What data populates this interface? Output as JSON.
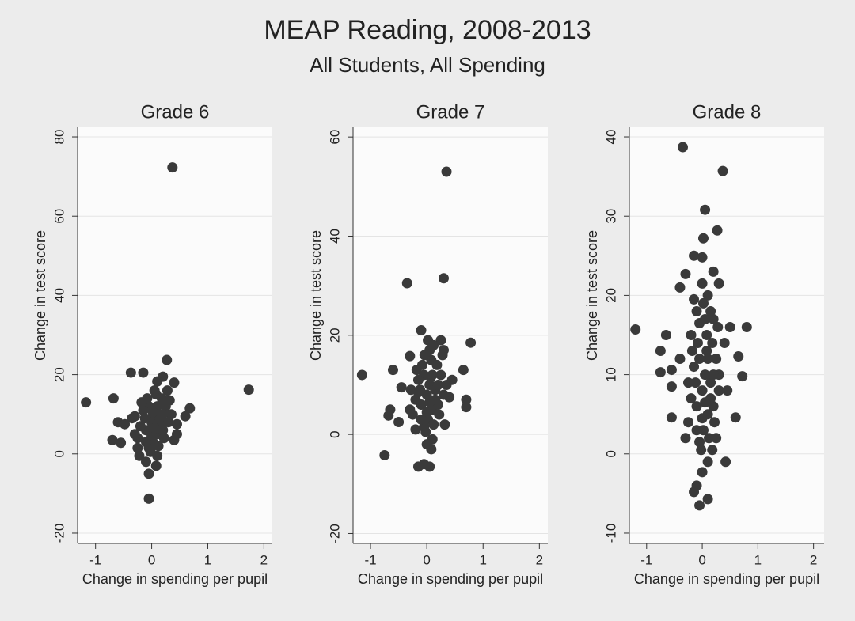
{
  "title": "MEAP Reading, 2008-2013",
  "subtitle": "All Students, All Spending",
  "chart_data": [
    {
      "type": "scatter",
      "title": "Grade 6",
      "x_label": "Change in spending per pupil",
      "y_label": "Change in test score",
      "color": "#3a3a3a",
      "grid": true,
      "xlim": [
        -1.32,
        2.15
      ],
      "ylim": [
        -22.6,
        82.6
      ],
      "xticks": [
        -1,
        0,
        1,
        2
      ],
      "yticks": [
        -20,
        0,
        20,
        40,
        60,
        80
      ],
      "x": [
        0.37,
        1.73,
        -1.17,
        -0.05,
        0.27,
        -0.37,
        -0.15,
        -0.68,
        -0.7,
        -0.55,
        -0.6,
        -0.48,
        -0.3,
        0.6,
        0.68,
        0.4,
        0.2,
        0.1,
        -0.05,
        -0.25,
        0.08,
        -0.1,
        0.4,
        0.45,
        0,
        0.05,
        -0.1,
        0.1,
        -0.05,
        0.15,
        -0.2,
        0.2,
        0.02,
        -0.08,
        0.08,
        0.25,
        -0.15,
        0.3,
        0.12,
        -0.02,
        0.18,
        -0.25,
        0.05,
        -0.12,
        0.22,
        0.35,
        -0.3,
        0.1,
        0,
        -0.05,
        0.28,
        0.15,
        -0.18,
        0.05,
        -0.35,
        0.32,
        0.02,
        -0.1,
        0.2,
        0.1,
        0.45,
        -0.22
      ],
      "y": [
        72.3,
        16.2,
        13,
        -11.3,
        23.7,
        20.5,
        20.5,
        14,
        3.5,
        2.8,
        8,
        7.5,
        9.5,
        9.5,
        11.5,
        18,
        19.5,
        18.3,
        -5,
        1.5,
        -3,
        -2,
        3.5,
        7.5,
        8,
        10,
        6,
        5,
        12,
        9,
        7,
        6,
        3,
        14,
        15,
        12,
        11,
        8,
        2,
        0.5,
        14,
        4,
        16,
        9,
        4,
        10,
        5,
        12,
        4.5,
        1.5,
        16,
        7,
        13,
        6.5,
        9,
        13.5,
        10.5,
        3,
        10,
        -0.5,
        5,
        -0.5
      ]
    },
    {
      "type": "scatter",
      "title": "Grade 7",
      "x_label": "Change in spending per pupil",
      "y_label": "Change in test score",
      "color": "#3a3a3a",
      "grid": true,
      "xlim": [
        -1.31,
        2.15
      ],
      "ylim": [
        -22.0,
        62.1
      ],
      "xticks": [
        -1,
        0,
        1,
        2
      ],
      "yticks": [
        -20,
        0,
        20,
        40,
        60
      ],
      "x": [
        0.35,
        -0.35,
        0.3,
        -1.15,
        -0.75,
        -0.65,
        -0.68,
        -0.5,
        -0.45,
        -0.6,
        0.78,
        0.65,
        0.7,
        0.7,
        0.45,
        0.4,
        -0.15,
        0.05,
        -0.05,
        0.08,
        -0.3,
        0.25,
        0.3,
        -0.1,
        0,
        0.05,
        -0.1,
        0.1,
        -0.05,
        0.15,
        -0.2,
        0.2,
        0.02,
        -0.08,
        0.08,
        0.25,
        -0.15,
        0.3,
        0.12,
        -0.02,
        0.18,
        -0.25,
        0.05,
        -0.12,
        0.22,
        0.35,
        -0.3,
        0.1,
        0,
        -0.05,
        0.28,
        0.15,
        -0.18,
        0.05,
        -0.28,
        0.32,
        0.02,
        -0.1,
        0.2,
        0.1,
        -0.2,
        0.12,
        -0.04,
        0,
        0.07,
        -0.15
      ],
      "y": [
        53,
        30.5,
        31.5,
        12,
        -4.2,
        5,
        3.8,
        2.5,
        9.5,
        13,
        18.5,
        13,
        7,
        5.5,
        11,
        7.5,
        -6.5,
        -6.5,
        -6,
        -3,
        15.8,
        19,
        17,
        21,
        8,
        10,
        6,
        5,
        12,
        9,
        7,
        6,
        3,
        14,
        15,
        12,
        11,
        8,
        2,
        0.5,
        14,
        4,
        17,
        9,
        4,
        10,
        5,
        12,
        4.5,
        1.5,
        16,
        7,
        13,
        6.5,
        9,
        2,
        19,
        3,
        10,
        -1,
        1,
        18,
        16,
        -2,
        11.5,
        8.5
      ]
    },
    {
      "type": "scatter",
      "title": "Grade 8",
      "x_label": "Change in spending per pupil",
      "y_label": "Change in test score",
      "color": "#3a3a3a",
      "grid": true,
      "xlim": [
        -1.31,
        2.19
      ],
      "ylim": [
        -11.3,
        41.3
      ],
      "xticks": [
        -1,
        0,
        1,
        2
      ],
      "yticks": [
        -10,
        0,
        10,
        20,
        30,
        40
      ],
      "x": [
        -0.35,
        0.37,
        0.05,
        0.02,
        0.27,
        -0.15,
        0,
        -0.3,
        0.2,
        -0.4,
        0.3,
        -1.2,
        -0.65,
        -0.75,
        -0.75,
        -0.55,
        -0.55,
        -0.55,
        0.8,
        0.5,
        0.65,
        0.72,
        0.6,
        0.45,
        0.42,
        -0.3,
        0.18,
        0.1,
        -0.1,
        -0.15,
        0.1,
        -0.05,
        0,
        -0.4,
        0.4,
        0,
        0.05,
        -0.1,
        0.1,
        -0.05,
        0.15,
        -0.2,
        0.2,
        0.02,
        -0.08,
        0.08,
        0.25,
        -0.15,
        0.3,
        0.12,
        -0.02,
        0.18,
        -0.25,
        0.05,
        -0.12,
        0.22,
        0.3,
        -0.2,
        0.1,
        0,
        -0.05,
        0.28,
        0.15,
        -0.18,
        0.05,
        -0.25,
        0.25,
        0.02,
        -0.1,
        0.2,
        -0.1,
        0.1,
        0,
        0.15,
        -0.05,
        0.08,
        -0.15,
        0.2
      ],
      "y": [
        38.7,
        35.7,
        30.8,
        27.2,
        28.2,
        25,
        24.8,
        22.7,
        23,
        21,
        21.5,
        15.7,
        15,
        13,
        10.3,
        10.6,
        4.6,
        8.5,
        16,
        16,
        12.3,
        9.8,
        4.6,
        8,
        -1,
        2,
        0.5,
        -1,
        -4,
        -4.8,
        -5.7,
        -6.5,
        -2.3,
        12,
        14,
        8,
        10,
        6,
        5,
        12,
        9,
        7,
        6,
        3,
        14,
        15,
        12,
        11,
        8,
        2,
        0.5,
        14,
        4,
        17,
        9,
        4,
        10,
        15,
        12,
        4.5,
        1.5,
        16,
        7,
        13,
        6.5,
        9,
        2,
        19,
        3,
        10,
        18,
        20,
        21.5,
        18,
        16.5,
        13,
        19.5,
        17
      ]
    }
  ]
}
